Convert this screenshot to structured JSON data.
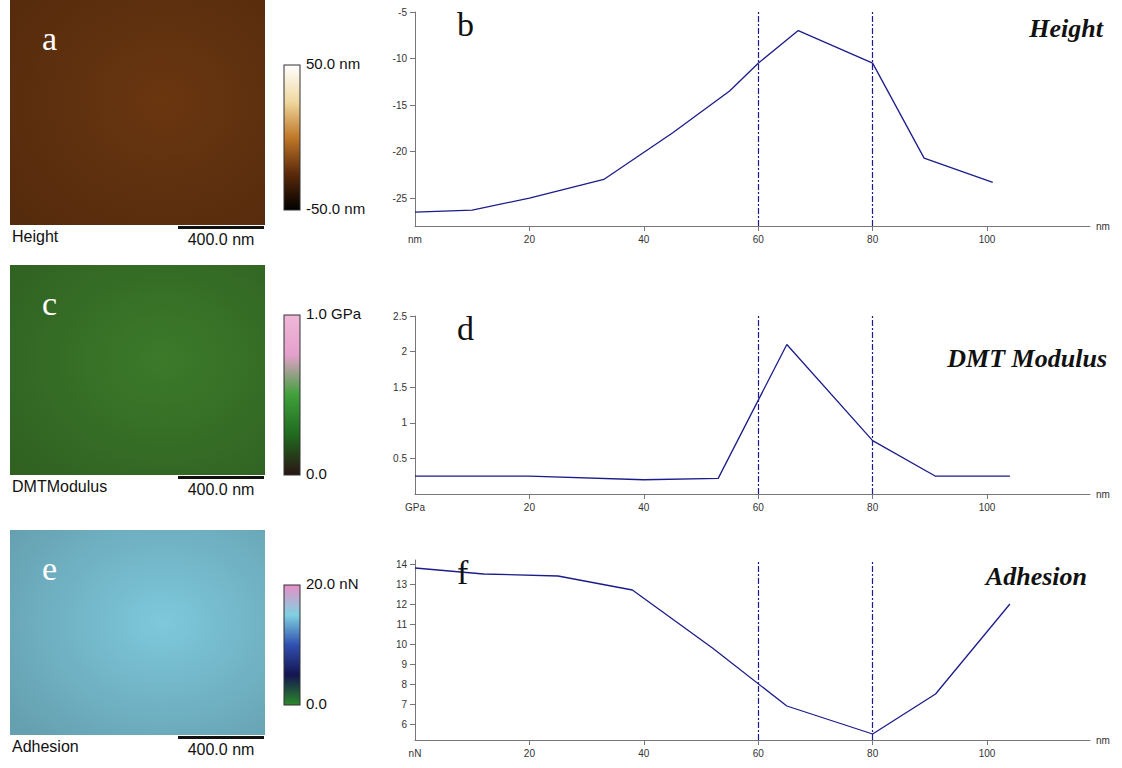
{
  "chart_data": [
    {
      "type": "image",
      "label": "a",
      "caption": "Height",
      "scale_bar": "400.0 nm",
      "color": "#6a3610",
      "colorbar": {
        "range": [
          -50,
          50
        ],
        "ticks": [
          {
            "value": -50,
            "label": "-50.0 nm"
          },
          {
            "value": 50,
            "label": "50.0 nm"
          }
        ],
        "colors": [
          "#000000",
          "#5c2a0a",
          "#c07828",
          "#f0d8a0",
          "#ffffff"
        ]
      }
    },
    {
      "type": "line",
      "label": "b",
      "title": "Height",
      "x": [
        0,
        10,
        20,
        33,
        45,
        55,
        60,
        67,
        80,
        89,
        101
      ],
      "values": [
        -26.5,
        -26.3,
        -25,
        -23,
        -18,
        -13.5,
        -10.5,
        -7,
        -10.5,
        -20.7,
        -23.3
      ],
      "xlim": [
        0,
        118
      ],
      "ylim": [
        -28,
        -5
      ],
      "xticks": [
        20,
        40,
        60,
        80,
        100
      ],
      "yticks": [
        -25,
        -20,
        -15,
        -10,
        -5
      ],
      "x_unit": "nm",
      "y_unit": "nm",
      "cursors": [
        60,
        80
      ],
      "color": "#1c1c8a",
      "grid": false
    },
    {
      "type": "image",
      "label": "c",
      "caption": "DMTModulus",
      "scale_bar": "400.0 nm",
      "color": "#3c7a2a",
      "colorbar": {
        "range": [
          0,
          1
        ],
        "ticks": [
          {
            "value": 0,
            "label": "0.0"
          },
          {
            "value": 1,
            "label": "1.0 GPa"
          }
        ],
        "colors": [
          "#2a1414",
          "#1f6a1f",
          "#3fa03a",
          "#e4a0cc",
          "#f0b8d8"
        ]
      }
    },
    {
      "type": "line",
      "label": "d",
      "title": "DMT Modulus",
      "x": [
        0,
        20,
        40,
        53,
        65,
        80,
        91,
        104
      ],
      "values": [
        0.25,
        0.25,
        0.2,
        0.22,
        2.1,
        0.75,
        0.25,
        0.25
      ],
      "xlim": [
        0,
        118
      ],
      "ylim": [
        0,
        2.5
      ],
      "xticks": [
        20,
        40,
        60,
        80,
        100
      ],
      "yticks": [
        0.5,
        1,
        1.5,
        2,
        2.5
      ],
      "x_unit": "nm",
      "y_unit": "GPa",
      "cursors": [
        60,
        80
      ],
      "color": "#1c1c8a",
      "grid": false
    },
    {
      "type": "image",
      "label": "e",
      "caption": "Adhesion",
      "scale_bar": "400.0 nm",
      "color": "#7ec8dc",
      "colorbar": {
        "range": [
          0,
          20
        ],
        "ticks": [
          {
            "value": 0,
            "label": "0.0"
          },
          {
            "value": 20,
            "label": "20.0 nN"
          }
        ],
        "colors": [
          "#2a8a2a",
          "#141450",
          "#3050b0",
          "#80d0e0",
          "#e890c8"
        ]
      }
    },
    {
      "type": "line",
      "label": "f",
      "title": "Adhesion",
      "x": [
        0,
        12,
        25,
        38,
        52,
        65,
        80,
        91,
        104
      ],
      "values": [
        13.8,
        13.5,
        13.4,
        12.7,
        9.8,
        6.9,
        5.5,
        7.5,
        12
      ],
      "xlim": [
        0,
        118
      ],
      "ylim": [
        5.2,
        14.2
      ],
      "xticks": [
        20,
        40,
        60,
        80,
        100
      ],
      "yticks": [
        6,
        7,
        8,
        9,
        10,
        11,
        12,
        13,
        14
      ],
      "x_unit": "nm",
      "y_unit": "nN",
      "cursors": [
        60,
        80
      ],
      "color": "#1c1c8a",
      "grid": false
    }
  ]
}
